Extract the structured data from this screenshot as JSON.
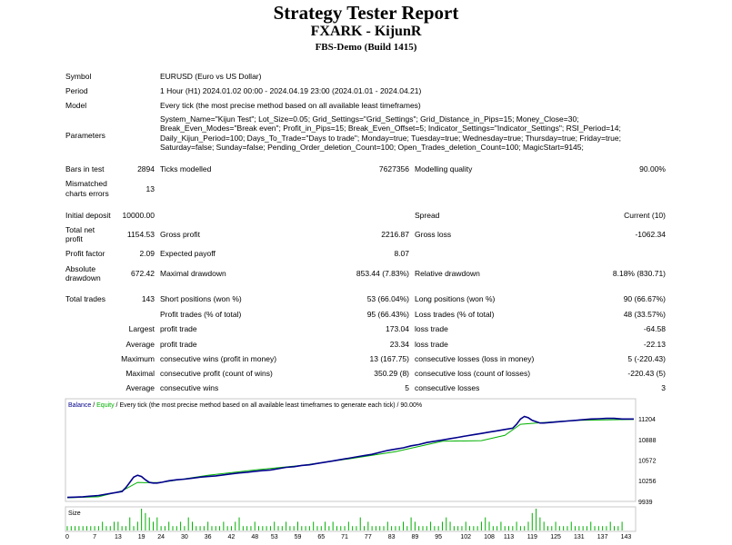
{
  "report": {
    "title": "Strategy Tester Report",
    "subtitle": "FXARK - KijunR",
    "server": "FBS-Demo (Build 1415)"
  },
  "info": {
    "symbol_label": "Symbol",
    "symbol_value": "EURUSD (Euro vs US Dollar)",
    "period_label": "Period",
    "period_value": "1 Hour (H1) 2024.01.02 00:00 - 2024.04.19 23:00 (2024.01.01 - 2024.04.21)",
    "model_label": "Model",
    "model_value": "Every tick (the most precise method based on all available least timeframes)",
    "parameters_label": "Parameters",
    "parameters_value": "System_Name=\"Kijun Test\"; Lot_Size=0.05; Grid_Settings=\"Grid_Settings\"; Grid_Distance_in_Pips=15; Money_Close=30; Break_Even_Modes=\"Break even\"; Profit_in_Pips=15; Break_Even_Offset=5; Indicator_Settings=\"Indicator_Settings\"; RSI_Period=14; Daily_Kijun_Period=100; Days_To_Trade=\"Days to trade\"; Monday=true; Tuesday=true; Wednesday=true; Thursday=true; Friday=true; Saturday=false; Sunday=false; Pending_Order_deletion_Count=100; Open_Trades_deletion_Count=100; MagicStart=9145;"
  },
  "stats": {
    "bars_label": "Bars in test",
    "bars_value": "2894",
    "ticks_label": "Ticks modelled",
    "ticks_value": "7627356",
    "quality_label": "Modelling quality",
    "quality_value": "90.00%",
    "mismatched_label_1": "Mismatched",
    "mismatched_label_2": "charts errors",
    "mismatched_value": "13",
    "deposit_label": "Initial deposit",
    "deposit_value": "10000.00",
    "spread_label": "Spread",
    "spread_value": "Current (10)",
    "netprofit_label_1": "Total net",
    "netprofit_label_2": "profit",
    "netprofit_value": "1154.53",
    "grossprofit_label": "Gross profit",
    "grossprofit_value": "2216.87",
    "grossloss_label": "Gross loss",
    "grossloss_value": "-1062.34",
    "pf_label": "Profit factor",
    "pf_value": "2.09",
    "payoff_label": "Expected payoff",
    "payoff_value": "8.07",
    "absdd_label_1": "Absolute",
    "absdd_label_2": "drawdown",
    "absdd_value": "672.42",
    "maxdd_label": "Maximal drawdown",
    "maxdd_value": "853.44 (7.83%)",
    "reldd_label": "Relative drawdown",
    "reldd_value": "8.18% (830.71)",
    "trades_label": "Total trades",
    "trades_value": "143",
    "short_label": "Short positions (won %)",
    "short_value": "53 (66.04%)",
    "long_label": "Long positions (won %)",
    "long_value": "90 (66.67%)",
    "profittrades_label": "Profit trades (% of total)",
    "profittrades_value": "95 (66.43%)",
    "losstrades_label": "Loss trades (% of total)",
    "losstrades_value": "48 (33.57%)",
    "largest_label": "Largest",
    "largest_profit_label": "profit trade",
    "largest_profit_value": "173.04",
    "largest_loss_label": "loss trade",
    "largest_loss_value": "-64.58",
    "average_label": "Average",
    "average_profit_label": "profit trade",
    "average_profit_value": "23.34",
    "average_loss_label": "loss trade",
    "average_loss_value": "-22.13",
    "maximum_label": "Maximum",
    "maxconswins_label": "consecutive wins (profit in money)",
    "maxconswins_value": "13 (167.75)",
    "maxconsloss_label": "consecutive losses (loss in money)",
    "maxconsloss_value": "5 (-220.43)",
    "maximal_label": "Maximal",
    "maximalprofit_label": "consecutive profit (count of wins)",
    "maximalprofit_value": "350.29 (8)",
    "maximalloss_label": "consecutive loss (count of losses)",
    "maximalloss_value": "-220.43 (5)",
    "average2_label": "Average",
    "avgwins_label": "consecutive wins",
    "avgwins_value": "5",
    "avglosses_label": "consecutive losses",
    "avglosses_value": "3"
  },
  "chart_data": {
    "type": "line",
    "legend": {
      "balance": "Balance",
      "sep1": " / ",
      "equity": "Equity",
      "rest": " / Every tick (the most precise method based on all available least timeframes to generate each tick) / 90.00%"
    },
    "colors": {
      "balance": "#00008b",
      "equity": "#00b000",
      "size": "#00b000"
    },
    "yticks": [
      "11204",
      "10888",
      "10572",
      "10256",
      "9939"
    ],
    "ylim": [
      9939,
      11330
    ],
    "xlim": [
      0,
      145
    ],
    "xticks": [
      "0",
      "7",
      "13",
      "19",
      "24",
      "30",
      "36",
      "42",
      "48",
      "53",
      "59",
      "65",
      "71",
      "77",
      "83",
      "89",
      "95",
      "102",
      "108",
      "113",
      "119",
      "125",
      "131",
      "137",
      "143"
    ],
    "size_label": "Size",
    "series": [
      {
        "name": "Balance",
        "x": [
          0,
          2,
          4,
          6,
          8,
          10,
          12,
          14,
          15,
          16,
          17,
          18,
          19,
          20,
          21,
          22,
          23,
          24,
          26,
          28,
          30,
          32,
          34,
          36,
          38,
          40,
          42,
          44,
          46,
          48,
          50,
          52,
          54,
          56,
          58,
          60,
          62,
          64,
          66,
          68,
          70,
          72,
          74,
          76,
          78,
          80,
          82,
          84,
          86,
          88,
          90,
          92,
          94,
          96,
          98,
          100,
          102,
          104,
          106,
          108,
          110,
          112,
          114,
          115,
          116,
          117,
          118,
          119,
          120,
          121,
          122,
          124,
          126,
          128,
          130,
          132,
          134,
          136,
          138,
          140,
          142,
          145
        ],
        "values": [
          10000,
          10005,
          10010,
          10020,
          10030,
          10050,
          10070,
          10090,
          10150,
          10230,
          10310,
          10340,
          10320,
          10270,
          10230,
          10220,
          10220,
          10230,
          10255,
          10270,
          10280,
          10295,
          10310,
          10320,
          10330,
          10345,
          10360,
          10375,
          10385,
          10400,
          10410,
          10420,
          10440,
          10460,
          10470,
          10490,
          10500,
          10520,
          10540,
          10560,
          10580,
          10600,
          10620,
          10640,
          10660,
          10690,
          10720,
          10740,
          10760,
          10790,
          10810,
          10840,
          10860,
          10880,
          10900,
          10920,
          10940,
          10960,
          10980,
          11000,
          11020,
          11040,
          11060,
          11120,
          11200,
          11240,
          11220,
          11180,
          11160,
          11140,
          11140,
          11150,
          11160,
          11170,
          11180,
          11190,
          11200,
          11205,
          11210,
          11210,
          11200,
          11200
        ]
      },
      {
        "name": "Equity",
        "x": [
          0,
          8,
          14,
          18,
          20,
          24,
          36,
          48,
          60,
          72,
          84,
          96,
          106,
          112,
          116,
          120,
          130,
          145
        ],
        "values": [
          9995,
          10010,
          10100,
          10230,
          10225,
          10230,
          10340,
          10420,
          10490,
          10590,
          10700,
          10860,
          10870,
          10950,
          11120,
          11140,
          11180,
          11195
        ]
      }
    ],
    "size_values": [
      1,
      1,
      1,
      1,
      1,
      1,
      1,
      1,
      1,
      2,
      1,
      1,
      2,
      2,
      1,
      1,
      3,
      1,
      2,
      5,
      4,
      3,
      2,
      3,
      1,
      1,
      2,
      1,
      1,
      2,
      1,
      3,
      2,
      1,
      1,
      1,
      2,
      1,
      1,
      1,
      2,
      1,
      1,
      2,
      3,
      1,
      1,
      1,
      2,
      1,
      1,
      1,
      1,
      2,
      1,
      1,
      2,
      1,
      1,
      2,
      1,
      1,
      1,
      2,
      1,
      1,
      2,
      1,
      2,
      1,
      1,
      1,
      2,
      1,
      1,
      3,
      1,
      2,
      1,
      1,
      1,
      1,
      2,
      1,
      1,
      1,
      2,
      1,
      3,
      2,
      1,
      1,
      1,
      2,
      1,
      1,
      2,
      3,
      2,
      1,
      1,
      1,
      2,
      1,
      1,
      1,
      2,
      3,
      2,
      1,
      1,
      2,
      1,
      1,
      1,
      2,
      1,
      1,
      2,
      4,
      5,
      3,
      2,
      1,
      1,
      2,
      1,
      1,
      1,
      2,
      1,
      1,
      1,
      1,
      2,
      1,
      1,
      1,
      1,
      2,
      1,
      1,
      2
    ]
  }
}
